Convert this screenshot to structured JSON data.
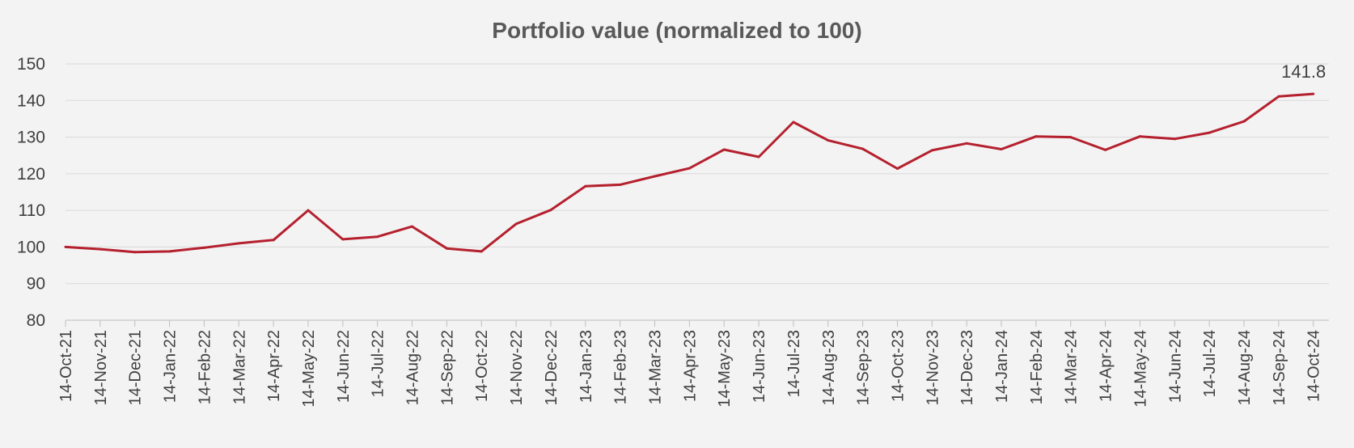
{
  "chart_data": {
    "type": "line",
    "title": "Portfolio value (normalized to 100)",
    "xlabel": "",
    "ylabel": "",
    "ylim": [
      80,
      150
    ],
    "yticks": [
      80,
      90,
      100,
      110,
      120,
      130,
      140,
      150
    ],
    "grid": true,
    "legend": "none",
    "color": "#b5202e",
    "x_tick_labels": [
      "14-Oct-21",
      "14-Nov-21",
      "14-Dec-21",
      "14-Jan-22",
      "14-Feb-22",
      "14-Mar-22",
      "14-Apr-22",
      "14-May-22",
      "14-Jun-22",
      "14-Jul-22",
      "14-Aug-22",
      "14-Sep-22",
      "14-Oct-22",
      "14-Nov-22",
      "14-Dec-22",
      "14-Jan-23",
      "14-Feb-23",
      "14-Mar-23",
      "14-Apr-23",
      "14-May-23",
      "14-Jun-23",
      "14-Jul-23",
      "14-Aug-23",
      "14-Sep-23",
      "14-Oct-23",
      "14-Nov-23",
      "14-Dec-23",
      "14-Jan-24",
      "14-Feb-24",
      "14-Mar-24",
      "14-Apr-24",
      "14-May-24",
      "14-Jun-24",
      "14-Jul-24",
      "14-Aug-24",
      "14-Sep-24",
      "14-Oct-24"
    ],
    "series": [
      {
        "name": "Portfolio value",
        "values": [
          100.0,
          99.4,
          98.6,
          98.8,
          99.8,
          101.0,
          101.9,
          110.0,
          102.1,
          102.8,
          105.6,
          99.6,
          98.8,
          106.3,
          110.1,
          116.6,
          117.0,
          119.3,
          121.5,
          126.6,
          124.6,
          134.1,
          129.1,
          126.8,
          121.4,
          126.4,
          128.3,
          126.7,
          130.2,
          130.0,
          126.5,
          130.2,
          129.5,
          131.2,
          134.3,
          141.1,
          141.8
        ],
        "last_value_label": "141.8"
      }
    ]
  }
}
